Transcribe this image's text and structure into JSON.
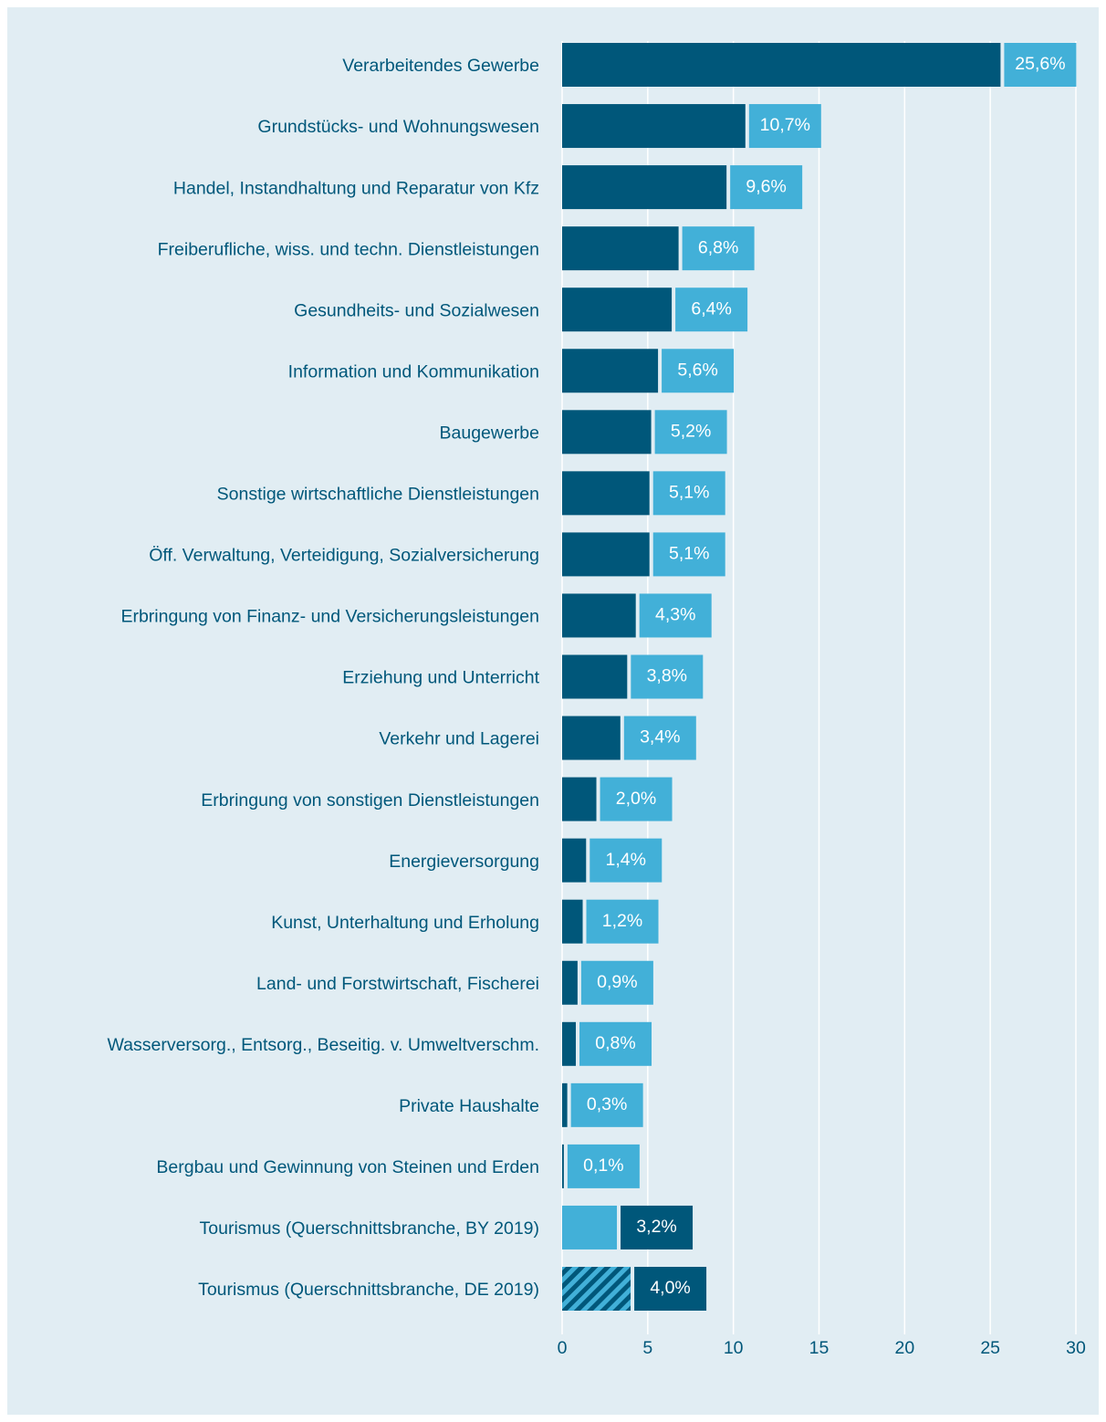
{
  "chart_data": {
    "type": "bar",
    "orientation": "horizontal",
    "categories": [
      "Verarbeitendes Gewerbe",
      "Grundstücks- und Wohnungswesen",
      "Handel, Instandhaltung und Reparatur von Kfz",
      "Freiberufliche, wiss. und techn. Dienstleistungen",
      "Gesundheits- und Sozialwesen",
      "Information und Kommunikation",
      "Baugewerbe",
      "Sonstige wirtschaftliche Dienstleistungen",
      "Öff. Verwaltung, Verteidigung, Sozialversicherung",
      "Erbringung von Finanz- und Versicherungsleistungen",
      "Erziehung und Unterricht",
      "Verkehr und Lagerei",
      "Erbringung von sonstigen Dienstleistungen",
      "Energieversorgung",
      "Kunst, Unterhaltung und Erholung",
      "Land- und Forstwirtschaft, Fischerei",
      "Wasserversorg., Entsorg., Beseitig. v. Umweltverschm.",
      "Private Haushalte",
      "Bergbau und Gewinnung von Steinen und Erden",
      "Tourismus (Querschnittsbranche, BY 2019)",
      "Tourismus (Querschnittsbranche, DE 2019)"
    ],
    "values": [
      25.6,
      10.7,
      9.6,
      6.8,
      6.4,
      5.6,
      5.2,
      5.1,
      5.1,
      4.3,
      3.8,
      3.4,
      2.0,
      1.4,
      1.2,
      0.9,
      0.8,
      0.3,
      0.1,
      3.2,
      4.0
    ],
    "value_labels": [
      "25,6%",
      "10,7%",
      "9,6%",
      "6,8%",
      "6,4%",
      "5,6%",
      "5,2%",
      "5,1%",
      "5,1%",
      "4,3%",
      "3,8%",
      "3,4%",
      "2,0%",
      "1,4%",
      "1,2%",
      "0,9%",
      "0,8%",
      "0,3%",
      "0,1%",
      "3,2%",
      "4,0%"
    ],
    "bar_colors": [
      "#00577a",
      "#00577a",
      "#00577a",
      "#00577a",
      "#00577a",
      "#00577a",
      "#00577a",
      "#00577a",
      "#00577a",
      "#00577a",
      "#00577a",
      "#00577a",
      "#00577a",
      "#00577a",
      "#00577a",
      "#00577a",
      "#00577a",
      "#00577a",
      "#00577a",
      "#42b0d8",
      "#42b0d8"
    ],
    "label_colors": [
      "#42b0d8",
      "#42b0d8",
      "#42b0d8",
      "#42b0d8",
      "#42b0d8",
      "#42b0d8",
      "#42b0d8",
      "#42b0d8",
      "#42b0d8",
      "#42b0d8",
      "#42b0d8",
      "#42b0d8",
      "#42b0d8",
      "#42b0d8",
      "#42b0d8",
      "#42b0d8",
      "#42b0d8",
      "#42b0d8",
      "#42b0d8",
      "#00577a",
      "#00577a"
    ],
    "hatched": [
      false,
      false,
      false,
      false,
      false,
      false,
      false,
      false,
      false,
      false,
      false,
      false,
      false,
      false,
      false,
      false,
      false,
      false,
      false,
      false,
      true
    ],
    "xlim": [
      0,
      30
    ],
    "xticks": [
      0,
      5,
      10,
      15,
      20,
      25,
      30
    ],
    "grid": true
  }
}
